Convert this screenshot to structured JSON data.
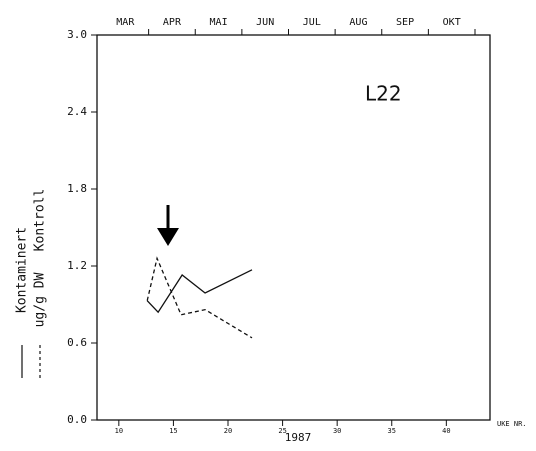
{
  "chart_data": {
    "type": "line",
    "annotation": "L22",
    "x_label": "1987",
    "x_unit_label": "UKE NR.",
    "y_label": "ug/g DW",
    "top_labels": [
      "MAR",
      "APR",
      "MAI",
      "JUN",
      "JUL",
      "AUG",
      "SEP",
      "OKT"
    ],
    "xlim": [
      8,
      44
    ],
    "xticks": [
      10,
      15,
      20,
      25,
      30,
      35,
      40
    ],
    "ylim": [
      0,
      3
    ],
    "yticks": [
      {
        "value": 0,
        "label": "0.0"
      },
      0.6,
      1.2,
      1.8,
      2.4,
      {
        "value": 3,
        "label": "3.0"
      }
    ],
    "series": [
      {
        "name": "Kontaminert",
        "color": "#111111",
        "dashed": false,
        "x": [
          12.6,
          13.6,
          15.8,
          17.9,
          22.2
        ],
        "values": [
          0.93,
          0.84,
          1.13,
          0.99,
          1.17
        ]
      },
      {
        "name": "Kontroll",
        "color": "#111111",
        "dashed": true,
        "x": [
          12.6,
          13.5,
          15.7,
          17.9,
          22.2
        ],
        "values": [
          0.93,
          1.26,
          0.82,
          0.86,
          0.64
        ]
      }
    ]
  }
}
